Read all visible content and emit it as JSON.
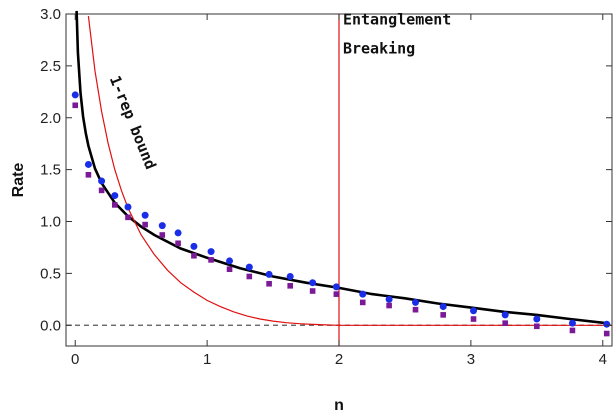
{
  "chart_data": {
    "type": "scatter",
    "xlabel": "n",
    "ylabel": "Rate",
    "xlim": [
      -0.07,
      4.07
    ],
    "ylim": [
      -0.2,
      3.0
    ],
    "x_ticks": [
      0,
      1,
      2,
      3,
      4
    ],
    "x_tick_labels": [
      "0",
      "1",
      "2",
      "3",
      "4"
    ],
    "y_ticks": [
      0.0,
      0.5,
      1.0,
      1.5,
      2.0,
      2.5,
      3.0
    ],
    "y_tick_labels": [
      "0.0",
      "0.5",
      "1.0",
      "1.5",
      "2.0",
      "2.5",
      "3.0"
    ],
    "grid": false,
    "annotations": [
      {
        "text": "Entanglement",
        "x": 2.03,
        "y": 2.9
      },
      {
        "text": "Breaking",
        "x": 2.03,
        "y": 2.62
      },
      {
        "text": "1-rep bound",
        "x": 0.26,
        "y": 2.38,
        "rotation": 68
      }
    ],
    "vertical_line": {
      "x": 2,
      "color": "#e01010"
    },
    "reference_line": {
      "y": 0,
      "style": "dashed",
      "color": "#555555"
    },
    "series": [
      {
        "marker": "circle",
        "color": "#1a2ee8",
        "x": [
          0,
          0.1,
          0.2,
          0.3,
          0.4,
          0.53,
          0.66,
          0.78,
          0.9,
          1.03,
          1.17,
          1.32,
          1.47,
          1.63,
          1.8,
          1.98,
          2.18,
          2.38,
          2.58,
          2.79,
          3.02,
          3.26,
          3.5,
          3.77,
          4.03
        ],
        "y": [
          2.22,
          1.55,
          1.39,
          1.25,
          1.14,
          1.06,
          0.96,
          0.89,
          0.76,
          0.71,
          0.62,
          0.56,
          0.49,
          0.47,
          0.41,
          0.37,
          0.3,
          0.25,
          0.22,
          0.18,
          0.14,
          0.1,
          0.06,
          0.02,
          0.01
        ]
      },
      {
        "marker": "square",
        "color": "#7a1a96",
        "x": [
          0,
          0.1,
          0.2,
          0.3,
          0.4,
          0.53,
          0.66,
          0.78,
          0.9,
          1.03,
          1.17,
          1.32,
          1.47,
          1.63,
          1.8,
          1.98,
          2.18,
          2.38,
          2.58,
          2.79,
          3.02,
          3.26,
          3.5,
          3.77,
          4.03
        ],
        "y": [
          2.12,
          1.45,
          1.3,
          1.16,
          1.04,
          0.97,
          0.87,
          0.79,
          0.67,
          0.63,
          0.54,
          0.47,
          0.4,
          0.38,
          0.33,
          0.3,
          0.22,
          0.19,
          0.15,
          0.1,
          0.06,
          0.02,
          -0.01,
          -0.05,
          -0.08
        ]
      },
      {
        "style": "line",
        "color": "#000000",
        "label": "1-rep bound",
        "x": [
          0.01,
          0.02,
          0.04,
          0.06,
          0.08,
          0.1,
          0.15,
          0.2,
          0.3,
          0.4,
          0.5,
          0.6,
          0.8,
          1.0,
          1.25,
          1.5,
          1.75,
          2.0,
          2.25,
          2.5,
          2.75,
          3.0,
          3.25,
          3.5,
          3.75,
          4.03
        ],
        "y": [
          3.03,
          2.63,
          2.24,
          2.01,
          1.85,
          1.73,
          1.51,
          1.37,
          1.18,
          1.05,
          0.95,
          0.87,
          0.74,
          0.65,
          0.55,
          0.47,
          0.41,
          0.36,
          0.3,
          0.26,
          0.21,
          0.17,
          0.13,
          0.1,
          0.06,
          0.02
        ]
      },
      {
        "style": "line",
        "color": "#e01010",
        "x": [
          0.1,
          0.15,
          0.2,
          0.25,
          0.3,
          0.35,
          0.4,
          0.5,
          0.6,
          0.7,
          0.8,
          0.9,
          1.0,
          1.1,
          1.2,
          1.3,
          1.4,
          1.5,
          1.6,
          1.7,
          1.8,
          1.9,
          2.0,
          2.5,
          3.0,
          3.5,
          4.07
        ],
        "y": [
          2.98,
          2.45,
          2.06,
          1.75,
          1.5,
          1.3,
          1.13,
          0.87,
          0.68,
          0.53,
          0.41,
          0.32,
          0.24,
          0.18,
          0.13,
          0.09,
          0.06,
          0.04,
          0.025,
          0.015,
          0.008,
          0.003,
          0.0,
          0.0,
          0.0,
          0.0,
          0.0
        ]
      }
    ]
  }
}
